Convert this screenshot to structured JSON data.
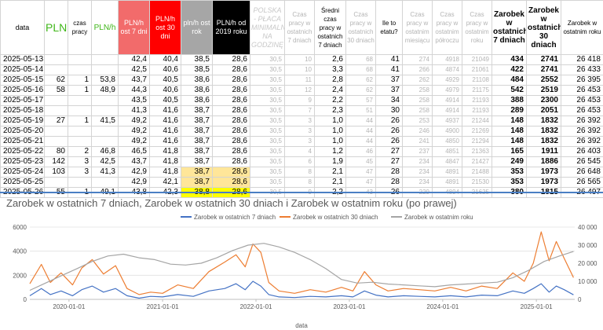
{
  "headers": [
    {
      "label": "data",
      "cls": "h-date"
    },
    {
      "label": "PLN",
      "cls": "h-pln"
    },
    {
      "label": "czas pracy",
      "cls": "h-plain"
    },
    {
      "label": "PLN/h",
      "cls": "h-plnh"
    },
    {
      "label": "PLN/h ost 7 dni",
      "cls": "h-red1"
    },
    {
      "label": "PLN/h ost 30 dni",
      "cls": "h-red2"
    },
    {
      "label": "pln/h ost rok",
      "cls": "h-grey"
    },
    {
      "label": "PLN/h od 2019 roku",
      "cls": "h-black"
    },
    {
      "label": "POLSKA - PŁACA MINIMALNA NA GODZINĘ",
      "cls": "h-wm"
    },
    {
      "label": "Czas pracy w ostatnich 7 dniach",
      "cls": "h-gray"
    },
    {
      "label": "Średni czas pracy w ostatnich 7 dniach",
      "cls": "h-plain"
    },
    {
      "label": "Czas pracy w ostatnich 30 dniach",
      "cls": "h-gray"
    },
    {
      "label": "Ile to etatu?",
      "cls": "h-plain"
    },
    {
      "label": "Czas pracy w ostatnim miesiącu",
      "cls": "h-gray"
    },
    {
      "label": "Czas pracy w ostatnim półroczu",
      "cls": "h-gray"
    },
    {
      "label": "Czas pracy w ostatnim roku",
      "cls": "h-gray"
    },
    {
      "label": "Zarobek w ostatnich 7 dniach",
      "cls": "h-bold"
    },
    {
      "label": "Zarobek w ostatnich 30 dniach",
      "cls": "h-bold"
    },
    {
      "label": "Zarobek w ostatnim roku",
      "cls": "h-plain"
    }
  ],
  "rows": [
    [
      "2025-05-13",
      "",
      "",
      "",
      "42,4",
      "40,4",
      "38,5",
      "28,6",
      "30,5",
      "10",
      "2,6",
      "68",
      "41",
      "274",
      "4918",
      "21049",
      "434",
      "2741",
      "26 418"
    ],
    [
      "2025-05-14",
      "",
      "",
      "",
      "42,5",
      "40,6",
      "38,5",
      "28,6",
      "30,5",
      "10",
      "3,3",
      "68",
      "41",
      "266",
      "4874",
      "21061",
      "422",
      "2741",
      "26 433"
    ],
    [
      "2025-05-15",
      "62",
      "1",
      "53,8",
      "43,7",
      "40,5",
      "38,6",
      "28,6",
      "30,5",
      "11",
      "2,8",
      "62",
      "37",
      "262",
      "4929",
      "21108",
      "484",
      "2552",
      "26 395"
    ],
    [
      "2025-05-16",
      "58",
      "1",
      "48,9",
      "44,3",
      "40,6",
      "38,6",
      "28,6",
      "30,5",
      "12",
      "2,4",
      "62",
      "37",
      "258",
      "4979",
      "21175",
      "542",
      "2519",
      "26 453"
    ],
    [
      "2025-05-17",
      "",
      "",
      "",
      "43,5",
      "40,5",
      "38,6",
      "28,6",
      "30,5",
      "9",
      "2,2",
      "57",
      "34",
      "258",
      "4914",
      "21193",
      "388",
      "2300",
      "26 453"
    ],
    [
      "2025-05-18",
      "",
      "",
      "",
      "41,3",
      "41,6",
      "38,7",
      "28,6",
      "30,5",
      "7",
      "2,3",
      "51",
      "30",
      "258",
      "4914",
      "21193",
      "289",
      "2051",
      "26 453"
    ],
    [
      "2025-05-19",
      "27",
      "1",
      "41,5",
      "49,2",
      "41,6",
      "38,7",
      "28,6",
      "30,5",
      "3",
      "1,0",
      "44",
      "26",
      "253",
      "4937",
      "21244",
      "148",
      "1832",
      "26 392"
    ],
    [
      "2025-05-20",
      "",
      "",
      "",
      "49,2",
      "41,6",
      "38,7",
      "28,6",
      "30,5",
      "3",
      "1,0",
      "44",
      "26",
      "246",
      "4900",
      "21269",
      "148",
      "1832",
      "26 392"
    ],
    [
      "2025-05-21",
      "",
      "",
      "",
      "49,2",
      "41,6",
      "38,7",
      "28,6",
      "30,5",
      "3",
      "1,0",
      "44",
      "26",
      "241",
      "4850",
      "21294",
      "148",
      "1832",
      "26 392"
    ],
    [
      "2025-05-22",
      "80",
      "2",
      "46,8",
      "46,5",
      "41,8",
      "38,7",
      "28,6",
      "30,5",
      "4",
      "1,2",
      "46",
      "27",
      "237",
      "4851",
      "21363",
      "165",
      "1911",
      "26 403"
    ],
    [
      "2025-05-23",
      "142",
      "3",
      "42,5",
      "43,7",
      "41,8",
      "38,7",
      "28,6",
      "30,5",
      "6",
      "1,9",
      "45",
      "27",
      "234",
      "4847",
      "21427",
      "249",
      "1886",
      "26 545"
    ],
    [
      "2025-05-24",
      "103",
      "3",
      "41,3",
      "42,9",
      "41,8",
      "38,7",
      "28,6",
      "30,5",
      "8",
      "2,1",
      "47",
      "28",
      "234",
      "4891",
      "21488",
      "353",
      "1973",
      "26 648"
    ],
    [
      "2025-05-25",
      "",
      "",
      "",
      "42,9",
      "42,1",
      "38,7",
      "28,6",
      "30,5",
      "8",
      "2,1",
      "47",
      "28",
      "234",
      "4891",
      "21530",
      "353",
      "1973",
      "26 565"
    ],
    [
      "2025-05-26",
      "55",
      "1",
      "49,1",
      "43,8",
      "42,3",
      "38,8",
      "28,6",
      "30,5",
      "9",
      "2,2",
      "43",
      "26",
      "229",
      "4894",
      "21625",
      "380",
      "1815",
      "26 497"
    ]
  ],
  "highlight": {
    "orange_rows": [
      11,
      12
    ],
    "yellow_row": 13,
    "cols": [
      6,
      7
    ]
  },
  "chart_data": {
    "type": "line",
    "title": "Zarobek w ostatnich 7 dniach, Zarobek w ostatnich 30 dniach i Zarobek w ostatnim roku (po prawej)",
    "xlabel": "data",
    "x_ticks": [
      "2020-01-01",
      "2021-01-01",
      "2022-01-01",
      "2023-01-01",
      "2024-01-01",
      "2025-01-01"
    ],
    "y_left_ticks": [
      "0",
      "2000",
      "4000",
      "6000"
    ],
    "y_right_ticks": [
      "0",
      "10 000",
      "20 000",
      "30 000",
      "40 000"
    ],
    "ylim_left": [
      0,
      6000
    ],
    "ylim_right": [
      0,
      40000
    ],
    "x_start": "2019-08-01",
    "x_end": "2025-05-31",
    "series": [
      {
        "name": "Zarobek w ostatnich 7 dniach",
        "axis": "left",
        "color": "#4472c4",
        "points": [
          [
            "2019-08-01",
            300
          ],
          [
            "2019-09-15",
            900
          ],
          [
            "2019-10-20",
            400
          ],
          [
            "2019-12-01",
            700
          ],
          [
            "2020-01-15",
            300
          ],
          [
            "2020-02-20",
            800
          ],
          [
            "2020-04-01",
            1100
          ],
          [
            "2020-05-15",
            600
          ],
          [
            "2020-07-01",
            900
          ],
          [
            "2020-08-15",
            300
          ],
          [
            "2020-10-01",
            100
          ],
          [
            "2020-11-15",
            250
          ],
          [
            "2021-01-01",
            200
          ],
          [
            "2021-03-01",
            400
          ],
          [
            "2021-05-01",
            250
          ],
          [
            "2021-07-01",
            700
          ],
          [
            "2021-09-01",
            900
          ],
          [
            "2021-10-15",
            1300
          ],
          [
            "2021-11-20",
            800
          ],
          [
            "2021-12-20",
            1500
          ],
          [
            "2022-01-20",
            1100
          ],
          [
            "2022-02-20",
            400
          ],
          [
            "2022-04-01",
            200
          ],
          [
            "2022-06-01",
            150
          ],
          [
            "2022-08-01",
            250
          ],
          [
            "2022-10-01",
            200
          ],
          [
            "2022-12-01",
            300
          ],
          [
            "2023-01-15",
            200
          ],
          [
            "2023-03-01",
            700
          ],
          [
            "2023-04-15",
            350
          ],
          [
            "2023-06-01",
            200
          ],
          [
            "2023-08-01",
            300
          ],
          [
            "2023-10-01",
            250
          ],
          [
            "2023-12-01",
            200
          ],
          [
            "2024-02-01",
            300
          ],
          [
            "2024-04-01",
            200
          ],
          [
            "2024-06-01",
            350
          ],
          [
            "2024-08-01",
            300
          ],
          [
            "2024-10-01",
            700
          ],
          [
            "2024-11-15",
            500
          ],
          [
            "2024-12-20",
            900
          ],
          [
            "2025-01-20",
            1300
          ],
          [
            "2025-02-20",
            600
          ],
          [
            "2025-03-20",
            1100
          ],
          [
            "2025-04-20",
            800
          ],
          [
            "2025-05-26",
            380
          ]
        ]
      },
      {
        "name": "Zarobek w ostatnich 30 dniach",
        "axis": "left",
        "color": "#ed7d31",
        "points": [
          [
            "2019-08-01",
            1300
          ],
          [
            "2019-09-15",
            2900
          ],
          [
            "2019-10-20",
            1400
          ],
          [
            "2019-12-01",
            2200
          ],
          [
            "2020-01-15",
            1200
          ],
          [
            "2020-02-20",
            2600
          ],
          [
            "2020-04-01",
            3300
          ],
          [
            "2020-05-15",
            2100
          ],
          [
            "2020-07-01",
            2800
          ],
          [
            "2020-08-15",
            900
          ],
          [
            "2020-10-01",
            400
          ],
          [
            "2020-11-15",
            600
          ],
          [
            "2021-01-01",
            500
          ],
          [
            "2021-03-01",
            1200
          ],
          [
            "2021-05-01",
            900
          ],
          [
            "2021-07-01",
            2300
          ],
          [
            "2021-09-01",
            3100
          ],
          [
            "2021-10-15",
            3700
          ],
          [
            "2021-11-20",
            2700
          ],
          [
            "2021-12-20",
            4600
          ],
          [
            "2022-01-20",
            3900
          ],
          [
            "2022-02-20",
            1400
          ],
          [
            "2022-04-01",
            700
          ],
          [
            "2022-06-01",
            500
          ],
          [
            "2022-08-01",
            800
          ],
          [
            "2022-10-01",
            600
          ],
          [
            "2022-12-01",
            1000
          ],
          [
            "2023-01-15",
            700
          ],
          [
            "2023-03-01",
            2300
          ],
          [
            "2023-04-15",
            1200
          ],
          [
            "2023-06-01",
            700
          ],
          [
            "2023-08-01",
            900
          ],
          [
            "2023-10-01",
            800
          ],
          [
            "2023-12-01",
            700
          ],
          [
            "2024-02-01",
            1000
          ],
          [
            "2024-04-01",
            700
          ],
          [
            "2024-06-01",
            1100
          ],
          [
            "2024-08-01",
            900
          ],
          [
            "2024-10-01",
            2200
          ],
          [
            "2024-11-15",
            1500
          ],
          [
            "2024-12-20",
            3000
          ],
          [
            "2025-01-20",
            5600
          ],
          [
            "2025-02-20",
            3200
          ],
          [
            "2025-03-20",
            4800
          ],
          [
            "2025-04-20",
            3400
          ],
          [
            "2025-05-26",
            1815
          ]
        ]
      },
      {
        "name": "Zarobek w ostatnim roku",
        "axis": "right",
        "color": "#a5a5a5",
        "points": [
          [
            "2019-08-01",
            5000
          ],
          [
            "2019-10-01",
            9000
          ],
          [
            "2019-12-01",
            13000
          ],
          [
            "2020-02-01",
            17000
          ],
          [
            "2020-04-01",
            21000
          ],
          [
            "2020-06-01",
            24000
          ],
          [
            "2020-08-01",
            25000
          ],
          [
            "2020-10-01",
            23000
          ],
          [
            "2020-12-01",
            22000
          ],
          [
            "2021-02-01",
            19500
          ],
          [
            "2021-04-01",
            19000
          ],
          [
            "2021-06-01",
            20000
          ],
          [
            "2021-08-01",
            23000
          ],
          [
            "2021-10-01",
            27000
          ],
          [
            "2021-12-01",
            30000
          ],
          [
            "2022-02-01",
            31000
          ],
          [
            "2022-04-01",
            29000
          ],
          [
            "2022-06-01",
            26000
          ],
          [
            "2022-08-01",
            22000
          ],
          [
            "2022-10-01",
            17000
          ],
          [
            "2022-12-01",
            11000
          ],
          [
            "2023-02-01",
            9000
          ],
          [
            "2023-04-01",
            9500
          ],
          [
            "2023-06-01",
            8500
          ],
          [
            "2023-08-01",
            8000
          ],
          [
            "2023-10-01",
            7500
          ],
          [
            "2023-12-01",
            7000
          ],
          [
            "2024-02-01",
            8000
          ],
          [
            "2024-04-01",
            8500
          ],
          [
            "2024-06-01",
            9000
          ],
          [
            "2024-08-01",
            9500
          ],
          [
            "2024-10-01",
            12000
          ],
          [
            "2024-12-01",
            16000
          ],
          [
            "2025-02-01",
            21000
          ],
          [
            "2025-04-01",
            24000
          ],
          [
            "2025-05-26",
            26497
          ]
        ]
      }
    ]
  }
}
